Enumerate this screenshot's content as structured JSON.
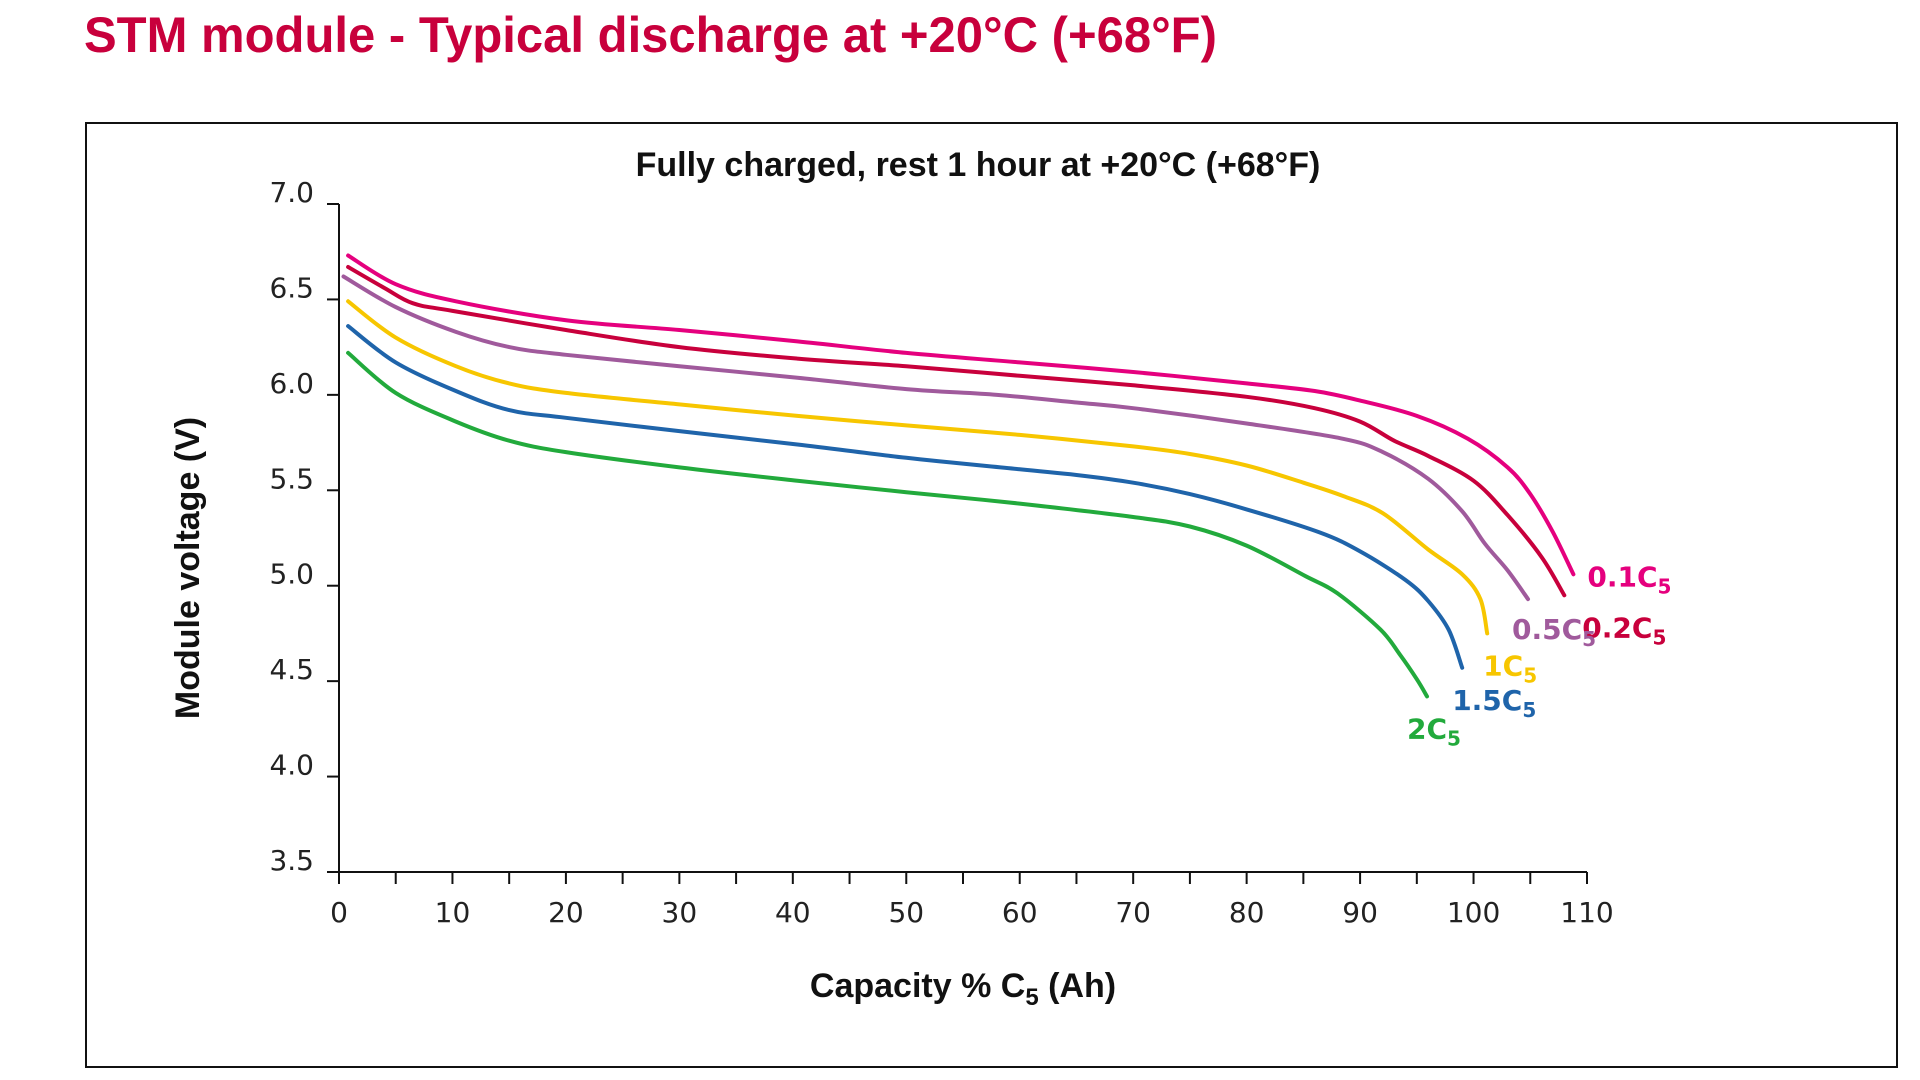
{
  "page": {
    "title": "STM module - Typical discharge at +20°C (+68°F)",
    "title_color": "#C8003C"
  },
  "chart_data": {
    "type": "line",
    "title": "Fully charged, rest 1 hour at +20°C (+68°F)",
    "xlabel": "Capacity % C",
    "xlabel_sub": "5",
    "xlabel_suffix": " (Ah)",
    "ylabel": "Module voltage (V)",
    "xlim": [
      0,
      110
    ],
    "ylim": [
      3.5,
      7.0
    ],
    "x_ticks": [
      0,
      10,
      20,
      30,
      40,
      50,
      60,
      70,
      80,
      90,
      100,
      110
    ],
    "x_tick_labels": [
      "0",
      "10",
      "20",
      "30",
      "40",
      "50",
      "60",
      "70",
      "80",
      "90",
      "100",
      "110"
    ],
    "x_minor_ticks": [
      5,
      15,
      25,
      35,
      45,
      55,
      65,
      75,
      85,
      95,
      105
    ],
    "y_ticks": [
      3.5,
      4.0,
      4.5,
      5.0,
      5.5,
      6.0,
      6.5,
      7.0
    ],
    "y_tick_labels": [
      "3.5",
      "4.0",
      "4.5",
      "5.0",
      "5.5",
      "6.0",
      "6.5",
      "7.0"
    ],
    "grid": false,
    "legend": "inline-labels-at-curve-ends",
    "series": [
      {
        "name": "0.1C5",
        "label_main": "0.1C",
        "label_sub": "5",
        "color": "#E5007E",
        "x": [
          0.8,
          5,
          10.3,
          20.1,
          30,
          40.4,
          50,
          60,
          70,
          80,
          86,
          90,
          95,
          99.5,
          103,
          105,
          107,
          108.8
        ],
        "y": [
          6.73,
          6.58,
          6.49,
          6.39,
          6.34,
          6.28,
          6.22,
          6.17,
          6.12,
          6.06,
          6.02,
          5.97,
          5.89,
          5.77,
          5.62,
          5.48,
          5.28,
          5.06
        ]
      },
      {
        "name": "0.2C5",
        "label_main": "0.2C",
        "label_sub": "5",
        "color": "#C8003C",
        "x": [
          0.8,
          4,
          6.5,
          10,
          20,
          30,
          40.4,
          50,
          60,
          70,
          80,
          86,
          90,
          93,
          96,
          100,
          103,
          106,
          108
        ],
        "y": [
          6.67,
          6.56,
          6.48,
          6.44,
          6.34,
          6.25,
          6.19,
          6.15,
          6.1,
          6.05,
          5.99,
          5.93,
          5.86,
          5.76,
          5.68,
          5.55,
          5.37,
          5.15,
          4.95
        ]
      },
      {
        "name": "0.5C5",
        "label_main": "0.5C",
        "label_sub": "5",
        "color": "#A05A9C",
        "x": [
          0.4,
          5,
          10.3,
          15,
          20,
          30,
          40.4,
          50,
          58,
          65,
          70,
          80,
          88.5,
          92,
          96,
          99,
          101,
          103,
          104.8
        ],
        "y": [
          6.62,
          6.46,
          6.33,
          6.25,
          6.21,
          6.15,
          6.09,
          6.03,
          6.0,
          5.96,
          5.93,
          5.85,
          5.77,
          5.7,
          5.56,
          5.39,
          5.22,
          5.08,
          4.93
        ]
      },
      {
        "name": "1C5",
        "label_main": "1C",
        "label_sub": "5",
        "color": "#F7C600",
        "x": [
          0.8,
          5,
          10.3,
          15,
          20,
          30,
          40.4,
          50,
          60,
          70,
          75,
          80,
          85,
          88.5,
          92,
          96,
          99,
          100.6,
          101.2
        ],
        "y": [
          6.49,
          6.3,
          6.15,
          6.06,
          6.01,
          5.95,
          5.89,
          5.84,
          5.79,
          5.73,
          5.69,
          5.63,
          5.54,
          5.47,
          5.38,
          5.19,
          5.06,
          4.93,
          4.75
        ]
      },
      {
        "name": "1.5C5",
        "label_main": "1.5C",
        "label_sub": "5",
        "color": "#1F64AA",
        "x": [
          0.8,
          5,
          10.3,
          15,
          20,
          30,
          40.4,
          50,
          60,
          65,
          70,
          75,
          80,
          86.4,
          90,
          94,
          96,
          97.8,
          99
        ],
        "y": [
          6.36,
          6.17,
          6.02,
          5.92,
          5.88,
          5.81,
          5.74,
          5.67,
          5.61,
          5.58,
          5.54,
          5.48,
          5.4,
          5.28,
          5.18,
          5.03,
          4.92,
          4.77,
          4.57
        ]
      },
      {
        "name": "2C5",
        "label_main": "2C",
        "label_sub": "5",
        "color": "#22AA3C",
        "x": [
          0.8,
          5,
          10.3,
          15,
          20,
          30,
          40.4,
          50,
          60,
          70,
          75,
          80,
          85.2,
          88,
          91.8,
          93.5,
          95,
          95.9
        ],
        "y": [
          6.22,
          6.01,
          5.86,
          5.76,
          5.7,
          5.62,
          5.55,
          5.49,
          5.43,
          5.36,
          5.31,
          5.21,
          5.05,
          4.96,
          4.77,
          4.64,
          4.51,
          4.42
        ]
      }
    ]
  }
}
